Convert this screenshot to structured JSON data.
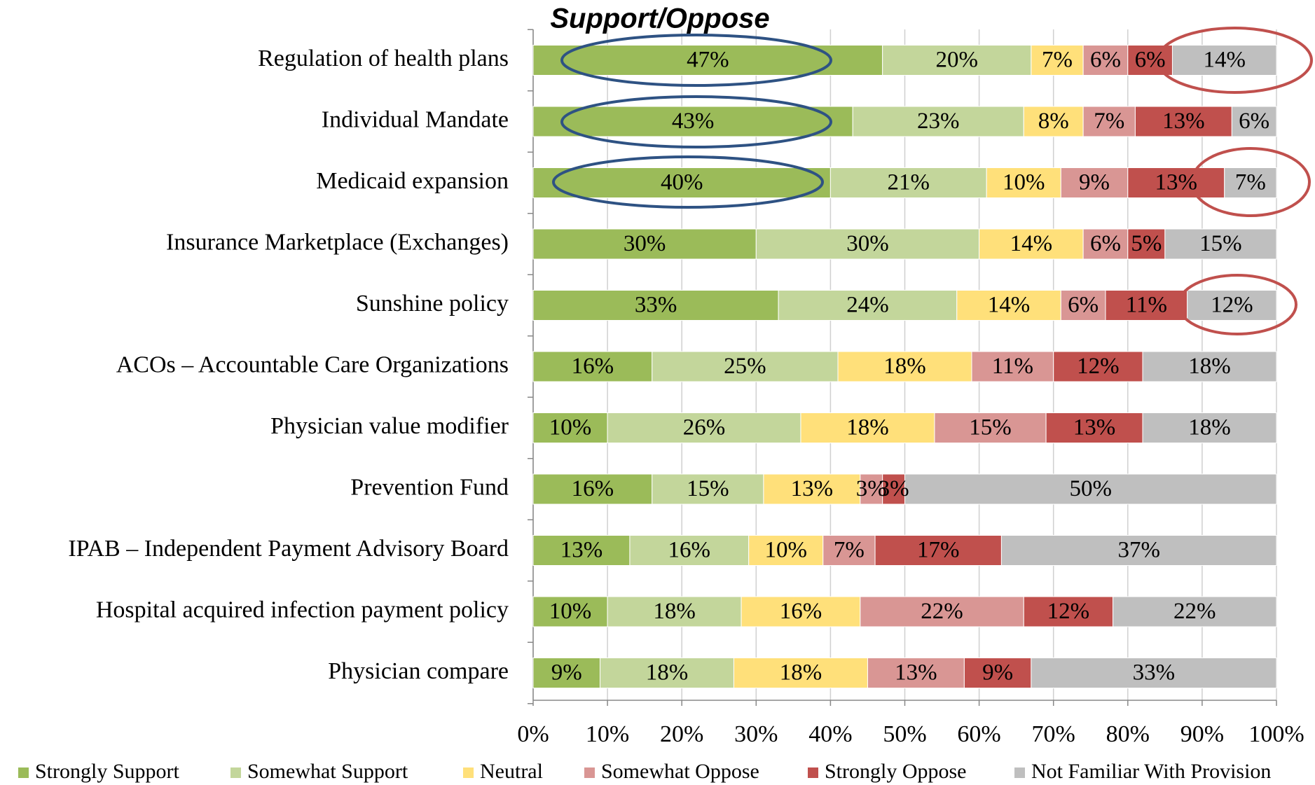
{
  "chart_data": {
    "type": "stacked_barh",
    "title": "Support/Oppose",
    "categories": [
      "Regulation of health plans",
      "Individual Mandate",
      "Medicaid expansion",
      "Insurance Marketplace (Exchanges)",
      "Sunshine policy",
      "ACOs – Accountable Care Organizations",
      "Physician value modifier",
      "Prevention Fund",
      "IPAB – Independent Payment Advisory Board",
      "Hospital acquired infection payment policy",
      "Physician compare"
    ],
    "series": [
      {
        "name": "Strongly Support",
        "color": "#9bbb59",
        "values": [
          47,
          43,
          40,
          30,
          33,
          16,
          10,
          16,
          13,
          10,
          9
        ],
        "value_labels": [
          "47%",
          "43%",
          "40%",
          "30%",
          "33%",
          "16%",
          "10%",
          "16%",
          "13%",
          "10%",
          "9%"
        ]
      },
      {
        "name": "Somewhat Support",
        "color": "#c3d69b",
        "values": [
          20,
          23,
          21,
          30,
          24,
          25,
          26,
          15,
          16,
          18,
          18
        ],
        "value_labels": [
          "20%",
          "23%",
          "21%",
          "30%",
          "24%",
          "25%",
          "26%",
          "15%",
          "16%",
          "18%",
          "18%"
        ]
      },
      {
        "name": "Neutral",
        "color": "#ffe07a",
        "values": [
          7,
          8,
          10,
          14,
          14,
          18,
          18,
          13,
          10,
          16,
          18
        ],
        "value_labels": [
          "7%",
          "8%",
          "10%",
          "14%",
          "14%",
          "18%",
          "18%",
          "13%",
          "10%",
          "16%",
          "18%"
        ]
      },
      {
        "name": "Somewhat Oppose",
        "color": "#d99694",
        "values": [
          6,
          7,
          9,
          6,
          6,
          11,
          15,
          3,
          7,
          22,
          13
        ],
        "value_labels": [
          "6%",
          "7%",
          "9%",
          "6%",
          "6%",
          "11%",
          "15%",
          "3%",
          "7%",
          "22%",
          "13%"
        ]
      },
      {
        "name": "Strongly Oppose",
        "color": "#c0504d",
        "values": [
          6,
          13,
          13,
          5,
          11,
          12,
          13,
          3,
          17,
          12,
          9
        ],
        "value_labels": [
          "6%",
          "13%",
          "13%",
          "5%",
          "11%",
          "12%",
          "13%",
          "3%",
          "17%",
          "12%",
          "9%"
        ]
      },
      {
        "name": "Not Familiar With Provision",
        "color": "#bfbfbf",
        "values": [
          14,
          6,
          7,
          15,
          12,
          18,
          18,
          50,
          37,
          22,
          33
        ],
        "value_labels": [
          "14%",
          "6%",
          "7%",
          "15%",
          "12%",
          "18%",
          "18%",
          "50%",
          "37%",
          "22%",
          "33%"
        ]
      }
    ],
    "xlim": [
      0,
      100
    ],
    "xticks": [
      {
        "value": 0,
        "label": "0%"
      },
      {
        "value": 10,
        "label": "10%"
      },
      {
        "value": 20,
        "label": "20%"
      },
      {
        "value": 30,
        "label": "30%"
      },
      {
        "value": 40,
        "label": "40%"
      },
      {
        "value": 50,
        "label": "50%"
      },
      {
        "value": 60,
        "label": "60%"
      },
      {
        "value": 70,
        "label": "70%"
      },
      {
        "value": 80,
        "label": "80%"
      },
      {
        "value": 90,
        "label": "90%"
      },
      {
        "value": 100,
        "label": "100%"
      }
    ],
    "grid": true,
    "legend": "bottom"
  }
}
